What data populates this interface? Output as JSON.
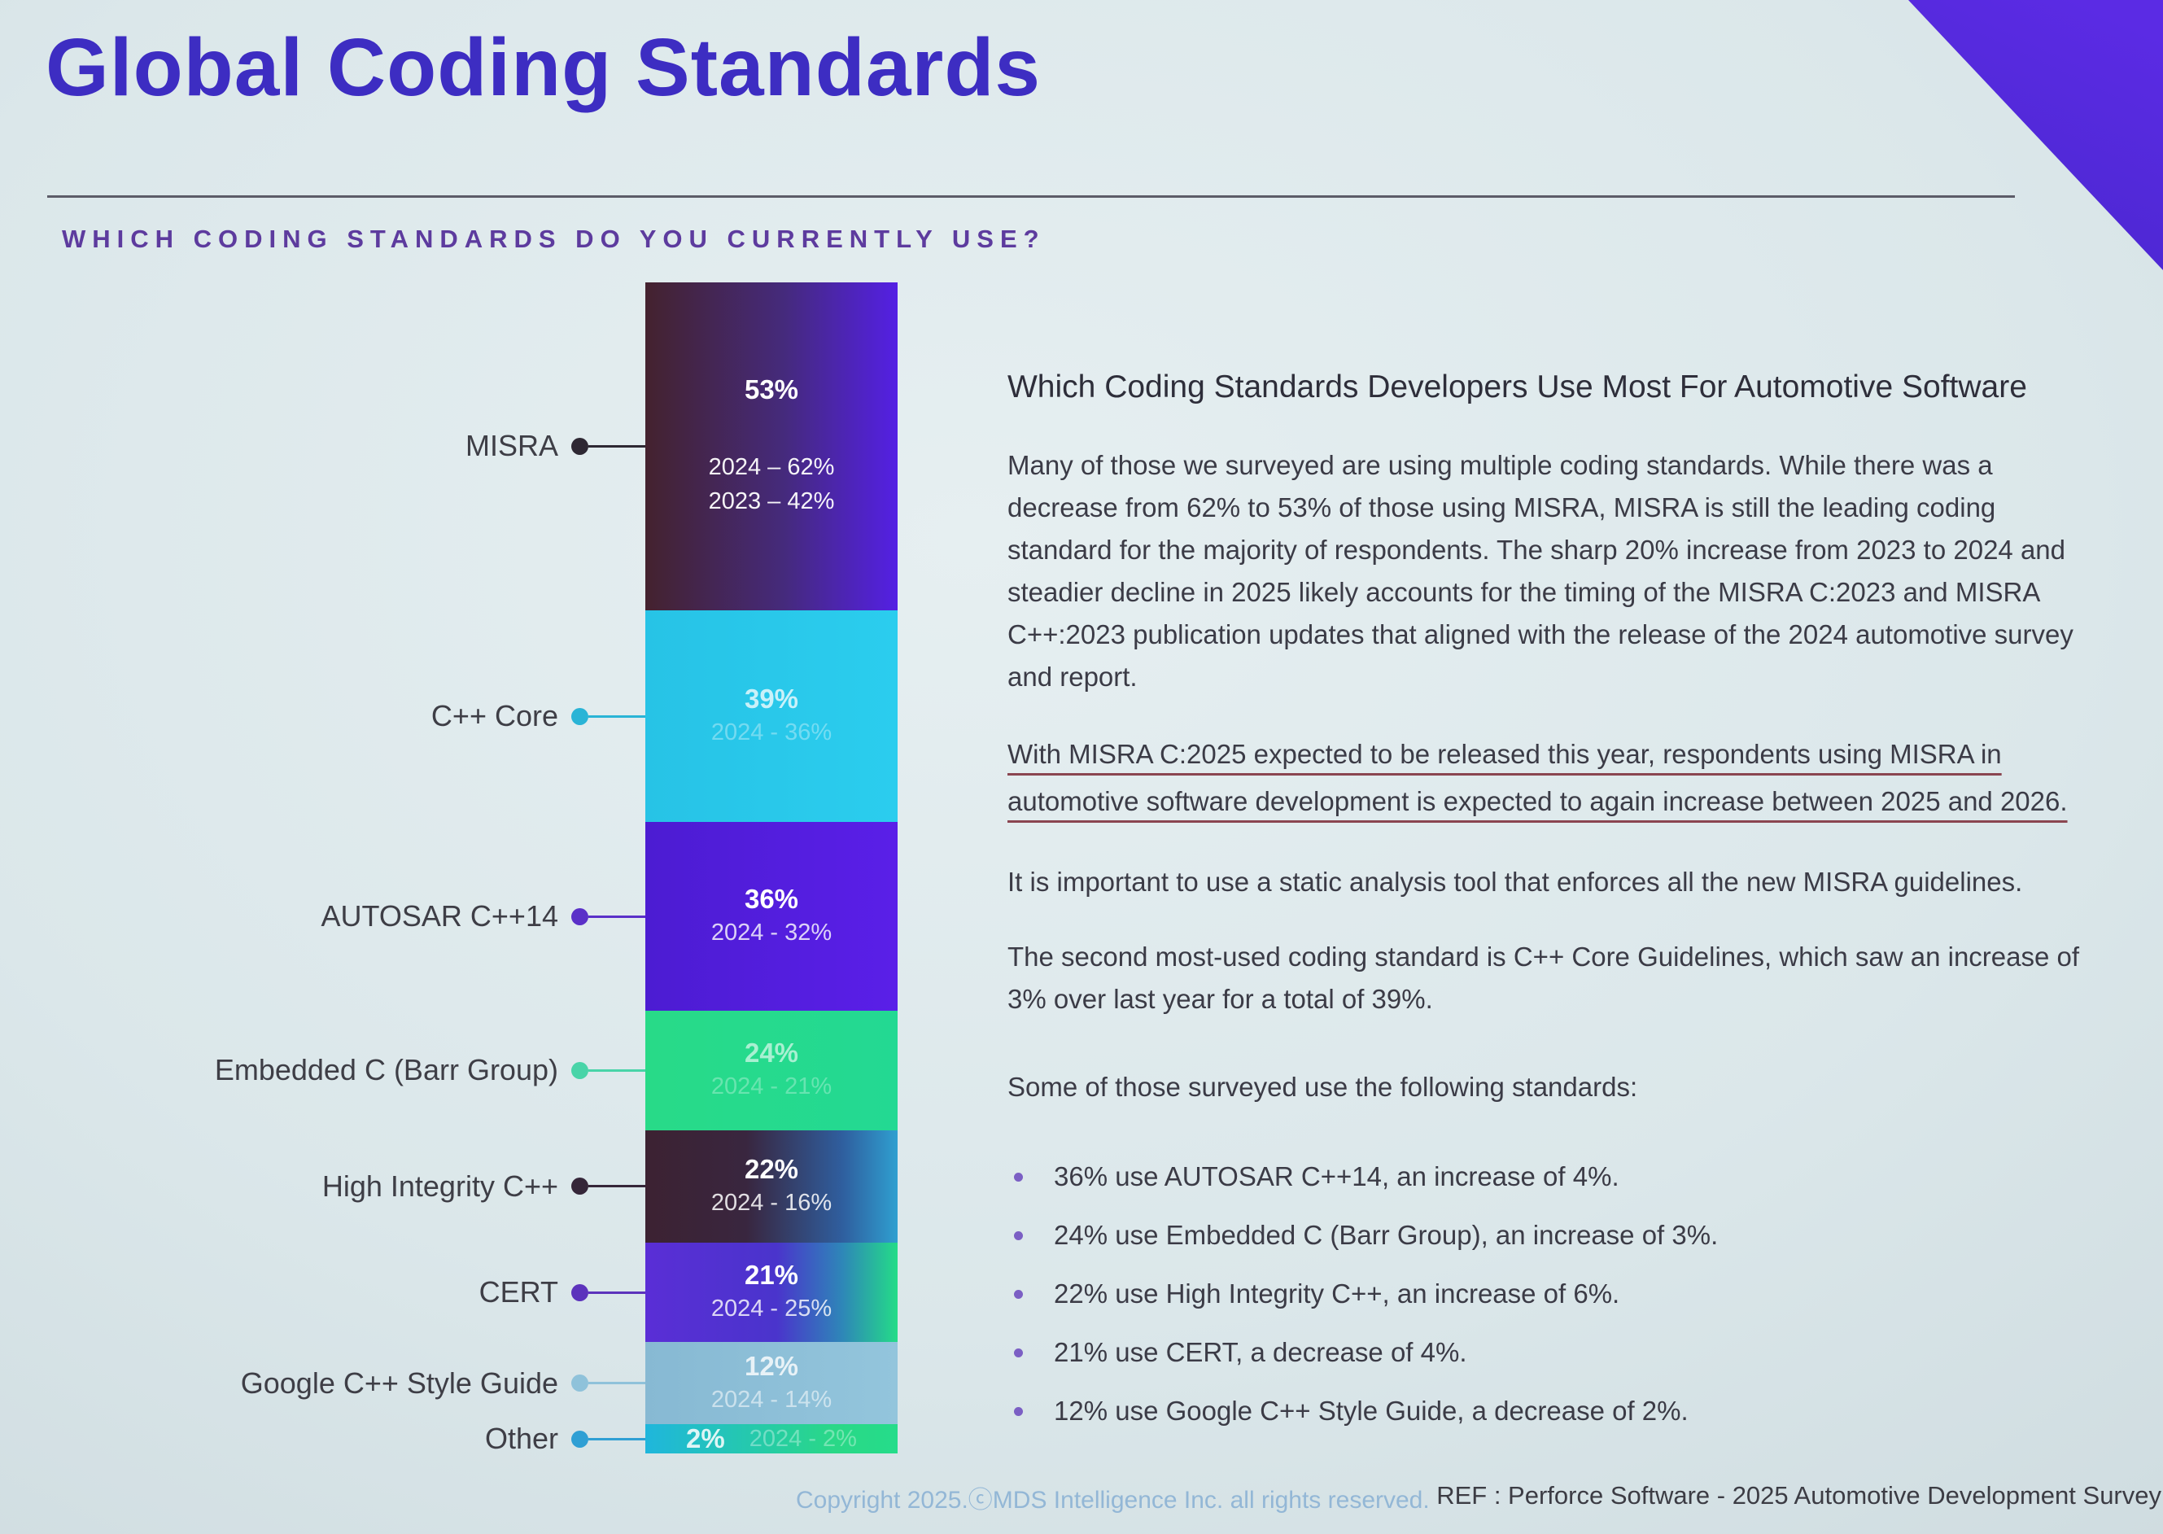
{
  "slide": {
    "title": "Global Coding Standards",
    "subtitle": "WHICH CODING STANDARDS DO YOU CURRENTLY USE?",
    "footer_left": "Copyright 2025.ⓒMDS Intelligence Inc. all rights reserved.",
    "footer_right": "REF : Perforce Software - 2025 Automotive Development Survey",
    "accent_color": "#5128dc",
    "title_color": "#3d2dc2",
    "subtitle_color": "#5d3b9e",
    "underline_color": "#8a4550"
  },
  "chart_data": {
    "type": "bar",
    "variant": "stacked-vertical-single-column",
    "title": "Which coding standards do you currently use?",
    "unit": "%",
    "grid": false,
    "legend_position": "left-leader-labels",
    "categories": [
      "MISRA",
      "C++ Core",
      "AUTOSAR C++14",
      "Embedded C (Barr Group)",
      "High Integrity C++",
      "CERT",
      "Google C++ Style Guide",
      "Other"
    ],
    "values": [
      53,
      39,
      36,
      24,
      22,
      21,
      12,
      2
    ],
    "segments": [
      {
        "id": "misra",
        "label": "MISRA",
        "value": 53,
        "pct_label": "53%",
        "sub_labels": [
          "2024 – 62%",
          "2023 – 42%"
        ],
        "prior": {
          "2024": 62,
          "2023": 42
        },
        "height_pct": 28.0,
        "colors": [
          "#44222e",
          "#452a7c 55%",
          "#5420e4"
        ],
        "dot_color": "#2e2833",
        "pct_opacity": 1,
        "sub_opacity": 0.95,
        "big_gap": true
      },
      {
        "id": "cpp-core",
        "label": "C++ Core",
        "value": 39,
        "pct_label": "39%",
        "sub_labels": [
          "2024 - 36%"
        ],
        "prior": {
          "2024": 36
        },
        "height_pct": 18.1,
        "colors": [
          "#27c3e6",
          "#2bcdee"
        ],
        "dot_color": "#2ab4d6",
        "pct_opacity": 0.75,
        "sub_opacity": 0.35
      },
      {
        "id": "autosar-cpp14",
        "label": "AUTOSAR C++14",
        "value": 36,
        "pct_label": "36%",
        "sub_labels": [
          "2024 - 32%"
        ],
        "prior": {
          "2024": 32
        },
        "height_pct": 16.1,
        "colors": [
          "#4c1cd2",
          "#5a1fe8"
        ],
        "dot_color": "#5a30c8",
        "pct_opacity": 1,
        "sub_opacity": 0.8
      },
      {
        "id": "embedded-c",
        "label": "Embedded C (Barr Group)",
        "value": 24,
        "pct_label": "24%",
        "sub_labels": [
          "2024 - 21%"
        ],
        "prior": {
          "2024": 21
        },
        "height_pct": 10.2,
        "colors": [
          "#28da88",
          "#23d993"
        ],
        "dot_color": "#49d4a8",
        "pct_opacity": 0.6,
        "sub_opacity": 0.3
      },
      {
        "id": "high-integrity-cpp",
        "label": "High Integrity C++",
        "value": 22,
        "pct_label": "22%",
        "sub_labels": [
          "2024 - 16%"
        ],
        "prior": {
          "2024": 16
        },
        "height_pct": 9.6,
        "colors": [
          "#3c2232",
          "#39263f 40%",
          "#2f5e9e 78%",
          "#2f9fd0"
        ],
        "dot_color": "#352639",
        "pct_opacity": 1,
        "sub_opacity": 0.85
      },
      {
        "id": "cert",
        "label": "CERT",
        "value": 21,
        "pct_label": "21%",
        "sub_labels": [
          "2024 - 25%"
        ],
        "prior": {
          "2024": 25
        },
        "height_pct": 8.5,
        "colors": [
          "#5a2ed6",
          "#4a34cc 52%",
          "#2e86b8 78%",
          "#24dc88"
        ],
        "dot_color": "#5c33bc",
        "pct_opacity": 1,
        "sub_opacity": 0.8
      },
      {
        "id": "google-style-guide",
        "label": "Google C++ Style Guide",
        "value": 12,
        "pct_label": "12%",
        "sub_labels": [
          "2024 - 14%"
        ],
        "prior": {
          "2024": 14
        },
        "height_pct": 7.0,
        "colors": [
          "#87b9d3",
          "#93c5dc"
        ],
        "dot_color": "#8fc2da",
        "pct_opacity": 0.8,
        "sub_opacity": 0.55
      },
      {
        "id": "other",
        "label": "Other",
        "value": 2,
        "pct_label": "2%",
        "sub_labels": [
          "2024 - 2%"
        ],
        "prior": {
          "2024": 2
        },
        "height_pct": 2.5,
        "colors": [
          "#1fb6dc",
          "#2ad887 75%",
          "#25dc8a"
        ],
        "dot_color": "#2f9fd4",
        "pct_opacity": 0.85,
        "sub_opacity": 0.35,
        "inline": true
      }
    ]
  },
  "article": {
    "heading": "Which Coding Standards Developers Use Most For Automotive Software",
    "p1": "Many of those we surveyed are using multiple coding standards. While there was a decrease from 62% to 53% of those using MISRA, MISRA is still the leading coding standard for the majority of respondents. The sharp 20% increase from 2023 to 2024 and steadier decline in 2025 likely accounts for the timing of the MISRA C:2023 and MISRA C++:2023 publication updates that aligned with the release of the 2024 automotive survey and report.",
    "underlined": "With MISRA C:2025 expected to be released this year, respondents using MISRA in automotive software development is expected to again increase between 2025 and 2026.",
    "p2": "It is important to use a static analysis tool that enforces all the new MISRA guidelines.",
    "p3": "The second most-used coding standard is C++ Core Guidelines, which saw an increase of 3% over last year for a total of 39%.",
    "bullets_intro": "Some of those surveyed use the following standards:",
    "bullets": [
      "36% use AUTOSAR C++14, an increase of 4%.",
      "24% use Embedded C (Barr Group), an increase of 3%.",
      "22% use High Integrity C++, an increase of 6%.",
      "21% use CERT, a decrease of 4%.",
      "12% use Google C++ Style Guide, a decrease of 2%."
    ]
  }
}
